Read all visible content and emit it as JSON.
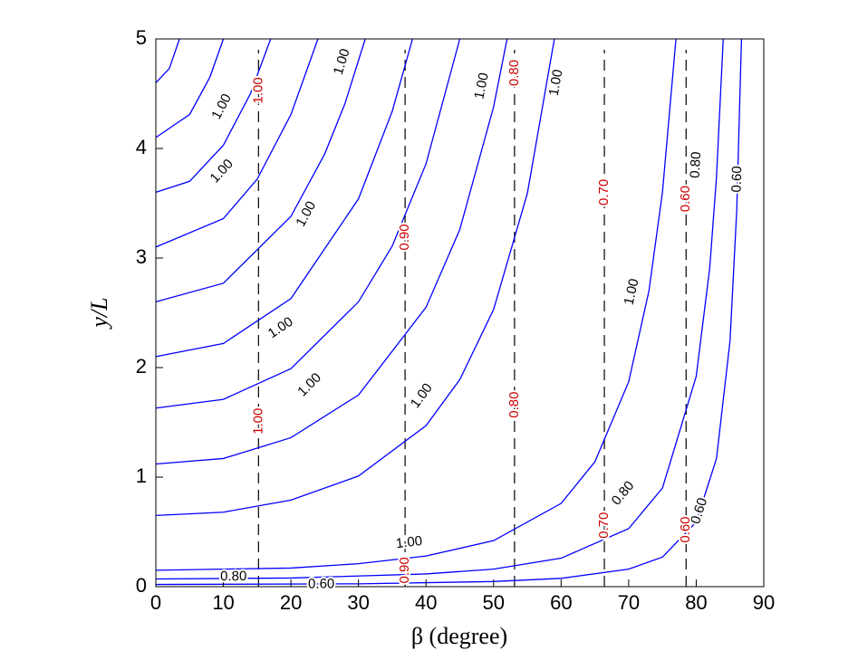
{
  "chart_data": {
    "type": "contour",
    "xlabel": "β (degree)",
    "ylabel": "y/L",
    "xlim": [
      0,
      90
    ],
    "ylim": [
      0,
      5
    ],
    "xticks": [
      0,
      10,
      20,
      30,
      40,
      50,
      60,
      70,
      80,
      90
    ],
    "yticks": [
      0,
      1,
      2,
      3,
      4,
      5
    ],
    "series": [
      {
        "color": "#0000ff",
        "x": [
          0,
          2,
          3.5
        ],
        "values": [
          4.6,
          4.73,
          5
        ]
      },
      {
        "color": "#0000ff",
        "x": [
          0,
          5,
          8,
          10
        ],
        "values": [
          4.1,
          4.31,
          4.65,
          5
        ]
      },
      {
        "color": "#0000ff",
        "x": [
          0,
          5,
          10,
          14,
          17
        ],
        "values": [
          3.6,
          3.7,
          4.03,
          4.5,
          5
        ]
      },
      {
        "color": "#0000ff",
        "x": [
          0,
          10,
          15,
          20,
          24
        ],
        "values": [
          3.1,
          3.36,
          3.72,
          4.31,
          5
        ]
      },
      {
        "color": "#0000ff",
        "x": [
          0,
          10,
          20,
          25,
          28,
          31
        ],
        "values": [
          2.6,
          2.77,
          3.38,
          3.95,
          4.41,
          5
        ]
      },
      {
        "color": "#0000ff",
        "x": [
          0,
          10,
          20,
          30,
          35,
          38
        ],
        "values": [
          2.1,
          2.22,
          2.63,
          3.54,
          4.34,
          5
        ]
      },
      {
        "color": "#0000ff",
        "x": [
          0,
          10,
          20,
          30,
          35,
          40,
          45
        ],
        "values": [
          1.63,
          1.71,
          1.99,
          2.6,
          3.11,
          3.86,
          5
        ]
      },
      {
        "color": "#0000ff",
        "x": [
          0,
          10,
          20,
          30,
          40,
          45,
          50,
          52
        ],
        "values": [
          1.12,
          1.17,
          1.36,
          1.75,
          2.55,
          3.26,
          4.38,
          5
        ]
      },
      {
        "color": "#0000ff",
        "x": [
          0,
          10,
          20,
          30,
          40,
          45,
          50,
          55,
          59
        ],
        "values": [
          0.65,
          0.68,
          0.79,
          1.01,
          1.47,
          1.89,
          2.53,
          3.59,
          5
        ]
      },
      {
        "color": "#0000ff",
        "x": [
          0,
          10,
          20,
          30,
          40,
          50,
          60,
          65,
          70,
          73,
          75,
          77
        ],
        "values": [
          0.15,
          0.16,
          0.17,
          0.21,
          0.28,
          0.42,
          0.76,
          1.14,
          1.87,
          2.7,
          3.6,
          5
        ]
      },
      {
        "color": "#0000ff",
        "x": [
          0,
          20,
          40,
          50,
          60,
          70,
          75,
          80,
          82,
          83,
          84
        ],
        "values": [
          0.07,
          0.079,
          0.116,
          0.16,
          0.26,
          0.53,
          0.9,
          1.92,
          2.91,
          3.74,
          5
        ]
      },
      {
        "color": "#0000ff",
        "x": [
          0,
          30,
          50,
          60,
          70,
          75,
          80,
          83,
          85,
          86,
          86.7
        ],
        "values": [
          0.02,
          0.026,
          0.047,
          0.076,
          0.16,
          0.27,
          0.59,
          1.17,
          2.24,
          3.44,
          5
        ]
      }
    ],
    "vlines": {
      "color": "#000000",
      "x": [
        15.2,
        36.9,
        53.1,
        66.4,
        78.5
      ]
    },
    "annotations": [
      {
        "text": "1.00",
        "x": 9.8,
        "y": 4.38,
        "color": "#000000"
      },
      {
        "text": "1.00",
        "x": 9.8,
        "y": 3.79,
        "color": "#000000"
      },
      {
        "text": "1.00",
        "x": 22.3,
        "y": 3.4,
        "color": "#000000"
      },
      {
        "text": "1.00",
        "x": 27.6,
        "y": 4.79,
        "color": "#000000"
      },
      {
        "text": "1.00",
        "x": 18.5,
        "y": 2.36,
        "color": "#000000"
      },
      {
        "text": "1.00",
        "x": 22.8,
        "y": 1.84,
        "color": "#000000"
      },
      {
        "text": "1.00",
        "x": 39.4,
        "y": 1.74,
        "color": "#000000"
      },
      {
        "text": "1.00",
        "x": 48.3,
        "y": 4.57,
        "color": "#000000"
      },
      {
        "text": "1.00",
        "x": 59.3,
        "y": 4.6,
        "color": "#000000"
      },
      {
        "text": "1.00",
        "x": 70.5,
        "y": 2.69,
        "color": "#000000"
      },
      {
        "text": "1.00",
        "x": 37.5,
        "y": 0.4,
        "color": "#000000"
      },
      {
        "text": "0.80",
        "x": 69.2,
        "y": 0.85,
        "color": "#000000"
      },
      {
        "text": "0.80",
        "x": 80.0,
        "y": 3.85,
        "color": "#000000"
      },
      {
        "text": "0.60",
        "x": 86.1,
        "y": 3.72,
        "color": "#000000"
      },
      {
        "text": "0.60",
        "x": 80.5,
        "y": 0.69,
        "color": "#000000"
      },
      {
        "text": "0.80",
        "x": 11.5,
        "y": 0.09,
        "color": "#000000"
      },
      {
        "text": "0.60",
        "x": 24.5,
        "y": 0.02,
        "color": "#000000"
      },
      {
        "text": "1.00",
        "x": 15.2,
        "y": 4.53,
        "color": "#cc0000"
      },
      {
        "text": "1.00",
        "x": 15.2,
        "y": 1.51,
        "color": "#cc0000"
      },
      {
        "text": "0.90",
        "x": 36.9,
        "y": 3.19,
        "color": "#cc0000"
      },
      {
        "text": "0.90",
        "x": 36.9,
        "y": 0.15,
        "color": "#cc0000"
      },
      {
        "text": "0.80",
        "x": 53.1,
        "y": 4.69,
        "color": "#cc0000"
      },
      {
        "text": "0.80",
        "x": 53.1,
        "y": 1.66,
        "color": "#cc0000"
      },
      {
        "text": "0.70",
        "x": 66.4,
        "y": 3.6,
        "color": "#cc0000"
      },
      {
        "text": "0.70",
        "x": 66.4,
        "y": 0.56,
        "color": "#cc0000"
      },
      {
        "text": "0.60",
        "x": 78.5,
        "y": 3.54,
        "color": "#cc0000"
      },
      {
        "text": "0.60",
        "x": 78.5,
        "y": 0.52,
        "color": "#cc0000"
      }
    ]
  }
}
